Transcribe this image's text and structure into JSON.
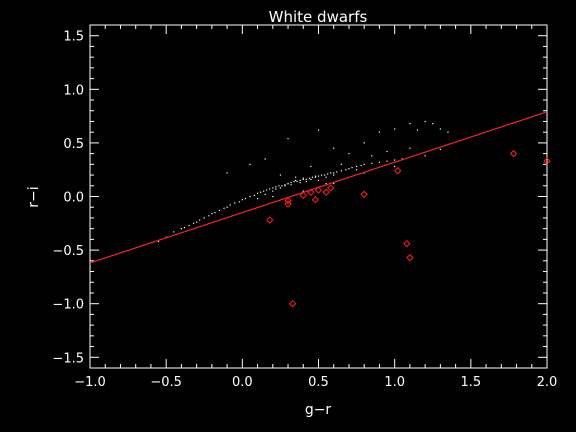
{
  "chart_data": {
    "type": "scatter",
    "title": "White dwarfs",
    "xlabel": "g−r",
    "ylabel": "r−i",
    "xlim": [
      -1.0,
      2.0
    ],
    "ylim": [
      -1.6,
      1.6
    ],
    "xticks": [
      -1.0,
      -0.5,
      0.0,
      0.5,
      1.0,
      1.5,
      2.0
    ],
    "xtick_labels": [
      "−1.0",
      "−0.5",
      "0.0",
      "0.5",
      "1.0",
      "1.5",
      "2.0"
    ],
    "yticks": [
      -1.5,
      -1.0,
      -0.5,
      0.0,
      0.5,
      1.0,
      1.5
    ],
    "ytick_labels": [
      "−1.5",
      "−1.0",
      "−0.5",
      "0.0",
      "0.5",
      "1.0",
      "1.5"
    ],
    "grid": false,
    "colors": {
      "background": "#000000",
      "axes": "#ffffff",
      "points": "#ffffff",
      "highlight": "#ff2020",
      "fit_line": "#ff2020"
    },
    "fit_line": {
      "x": [
        -1.0,
        2.0
      ],
      "y": [
        -0.62,
        0.79
      ]
    },
    "series": [
      {
        "marker": "dot",
        "x": [
          -0.55,
          -0.5,
          -0.45,
          -0.4,
          -0.38,
          -0.35,
          -0.32,
          -0.3,
          -0.28,
          -0.25,
          -0.22,
          -0.2,
          -0.18,
          -0.15,
          -0.12,
          -0.1,
          -0.08,
          -0.05,
          -0.02,
          0.0,
          0.02,
          0.05,
          0.08,
          0.1,
          0.12,
          0.14,
          0.16,
          0.18,
          0.2,
          0.22,
          0.24,
          0.26,
          0.28,
          0.3,
          0.32,
          0.34,
          0.36,
          0.38,
          0.4,
          0.42,
          0.44,
          0.46,
          0.48,
          0.5,
          0.52,
          0.54,
          0.56,
          0.58,
          0.6,
          0.62,
          0.65,
          0.68,
          0.7,
          0.72,
          0.75,
          0.78,
          0.8,
          0.85,
          0.9,
          0.95,
          1.0,
          0.1,
          0.15,
          0.2,
          0.22,
          0.25,
          0.28,
          0.3,
          0.32,
          0.35,
          0.38,
          0.4,
          0.42,
          0.45,
          0.48,
          0.5,
          0.55,
          0.6,
          0.3,
          0.5,
          0.6,
          0.7,
          0.8,
          0.85,
          0.9,
          1.0,
          1.05,
          1.1,
          1.15,
          1.2,
          1.25,
          1.3,
          1.35,
          -0.1,
          0.05,
          0.15,
          0.25,
          0.35,
          0.45,
          0.55,
          0.65,
          0.75,
          0.95,
          1.1,
          0.2,
          0.4,
          0.6,
          0.8,
          1.0,
          1.2,
          1.3
        ],
        "y": [
          -0.42,
          -0.38,
          -0.33,
          -0.3,
          -0.29,
          -0.27,
          -0.25,
          -0.24,
          -0.22,
          -0.2,
          -0.18,
          -0.16,
          -0.15,
          -0.13,
          -0.11,
          -0.1,
          -0.08,
          -0.06,
          -0.05,
          -0.03,
          -0.02,
          0.0,
          0.01,
          0.03,
          0.04,
          0.05,
          0.06,
          0.07,
          0.08,
          0.09,
          0.1,
          0.1,
          0.11,
          0.12,
          0.13,
          0.14,
          0.14,
          0.15,
          0.16,
          0.16,
          0.17,
          0.18,
          0.18,
          0.19,
          0.2,
          0.2,
          0.21,
          0.22,
          0.22,
          0.23,
          0.24,
          0.25,
          0.26,
          0.27,
          0.28,
          0.29,
          0.3,
          0.31,
          0.32,
          0.33,
          0.34,
          -0.02,
          0.02,
          0.05,
          0.07,
          0.08,
          0.1,
          0.12,
          0.11,
          0.15,
          0.13,
          0.17,
          0.14,
          0.16,
          0.19,
          0.15,
          0.18,
          0.2,
          0.54,
          0.62,
          0.45,
          0.4,
          0.5,
          0.38,
          0.6,
          0.63,
          0.35,
          0.68,
          0.62,
          0.7,
          0.68,
          0.63,
          0.6,
          0.22,
          0.3,
          0.35,
          0.2,
          0.18,
          0.28,
          0.12,
          0.3,
          0.25,
          0.42,
          0.45,
          0.0,
          0.05,
          0.12,
          0.22,
          0.28,
          0.38,
          0.44
        ]
      },
      {
        "marker": "diamond",
        "x": [
          0.18,
          0.3,
          0.3,
          0.33,
          0.4,
          0.45,
          0.48,
          0.5,
          0.55,
          0.58,
          0.8,
          1.02,
          1.08,
          1.1,
          1.78,
          2.0
        ],
        "y": [
          -0.22,
          -0.04,
          -0.07,
          -1.0,
          0.01,
          0.04,
          -0.03,
          0.06,
          0.04,
          0.08,
          0.02,
          0.24,
          -0.44,
          -0.57,
          0.4,
          0.33
        ]
      }
    ]
  }
}
